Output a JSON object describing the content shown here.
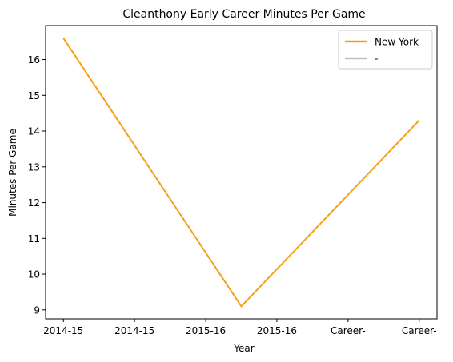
{
  "chart_data": {
    "type": "line",
    "title": "Cleanthony Early Career Minutes Per Game",
    "xlabel": "Year",
    "ylabel": "Minutes Per Game",
    "categories": [
      "2014-15",
      "2014-15",
      "2015-16",
      "2015-16",
      "Career-",
      "Career-"
    ],
    "series": [
      {
        "name": "New York",
        "x": [
          0,
          2.5,
          5
        ],
        "values": [
          16.6,
          9.1,
          14.3
        ],
        "color": "#f5a01a"
      },
      {
        "name": "-",
        "x": [],
        "values": [],
        "color": "#bfbfbf"
      }
    ],
    "ylim": [
      8.75,
      16.95
    ],
    "xlim": [
      -0.25,
      5.25
    ],
    "yticks": [
      9,
      10,
      11,
      12,
      13,
      14,
      15,
      16
    ],
    "grid": false,
    "legend_position": "top-right"
  }
}
